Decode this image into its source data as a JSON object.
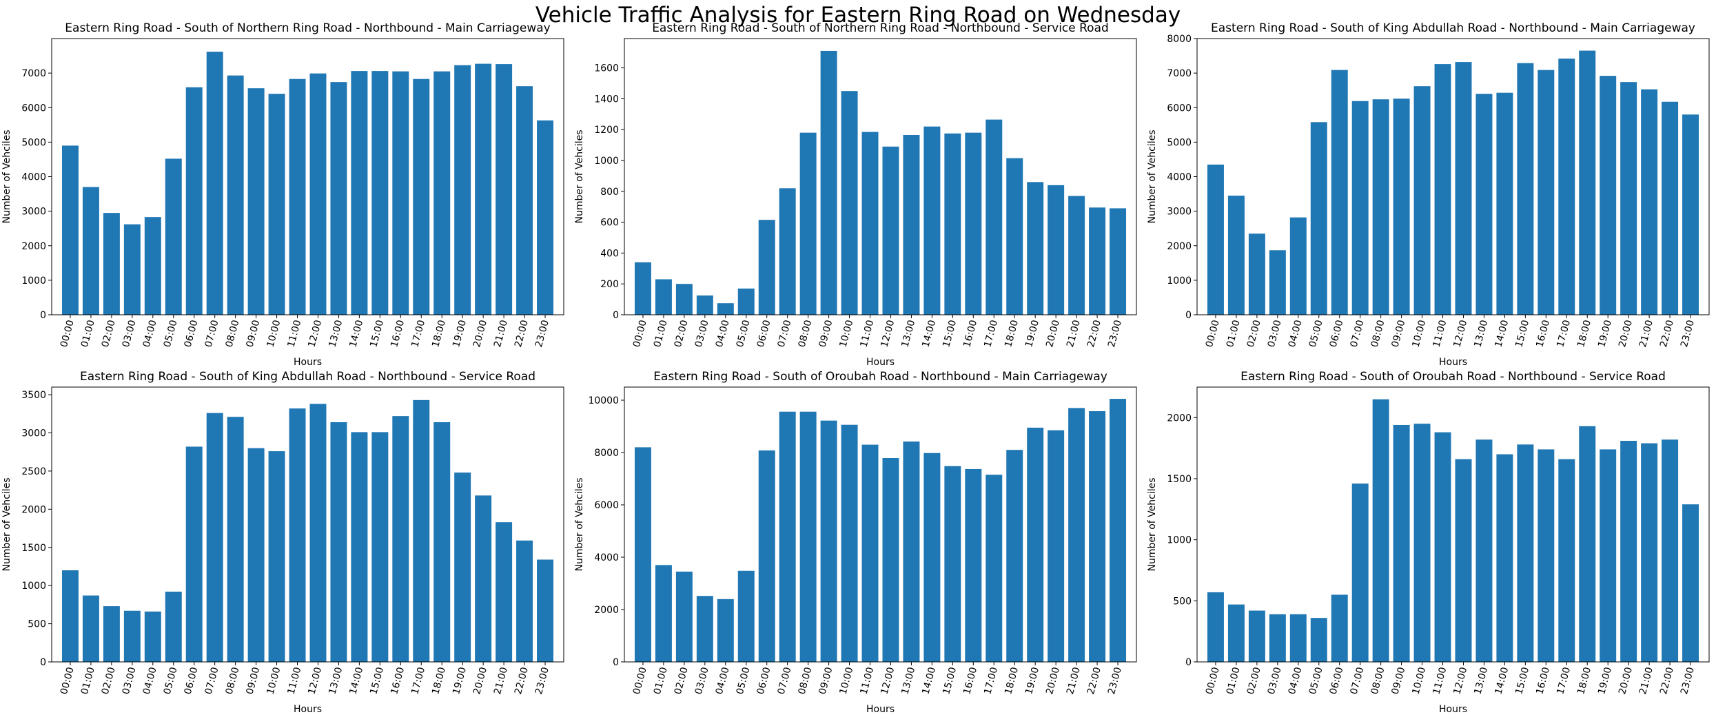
{
  "figure": {
    "suptitle": "Vehicle Traffic Analysis for Eastern Ring Road on Wednesday"
  },
  "chart_data": [
    {
      "type": "bar",
      "title": "Eastern Ring Road - South of Northern Ring Road - Northbound - Main Carriageway",
      "xlabel": "Hours",
      "ylabel": "Number of Vehciles",
      "categories": [
        "00:00",
        "01:00",
        "02:00",
        "03:00",
        "04:00",
        "05:00",
        "06:00",
        "07:00",
        "08:00",
        "09:00",
        "10:00",
        "11:00",
        "12:00",
        "13:00",
        "14:00",
        "15:00",
        "16:00",
        "17:00",
        "18:00",
        "19:00",
        "20:00",
        "21:00",
        "22:00",
        "23:00"
      ],
      "values": [
        4900,
        3700,
        2950,
        2620,
        2830,
        4520,
        6590,
        7620,
        6930,
        6560,
        6400,
        6830,
        6990,
        6740,
        7060,
        7060,
        7050,
        6830,
        7050,
        7230,
        7270,
        7260,
        6620,
        5630
      ],
      "ylim": [
        0,
        8000
      ],
      "yticks": [
        0,
        1000,
        2000,
        3000,
        4000,
        5000,
        6000,
        7000
      ],
      "color": "#1f77b4"
    },
    {
      "type": "bar",
      "title": "Eastern Ring Road - South of Northern Ring Road - Northbound - Service Road",
      "xlabel": "Hours",
      "ylabel": "Number of Vehciles",
      "categories": [
        "00:00",
        "01:00",
        "02:00",
        "03:00",
        "04:00",
        "05:00",
        "06:00",
        "07:00",
        "08:00",
        "09:00",
        "10:00",
        "11:00",
        "12:00",
        "13:00",
        "14:00",
        "15:00",
        "16:00",
        "17:00",
        "18:00",
        "19:00",
        "20:00",
        "21:00",
        "22:00",
        "23:00"
      ],
      "values": [
        340,
        230,
        200,
        125,
        75,
        170,
        615,
        820,
        1180,
        1710,
        1450,
        1185,
        1090,
        1165,
        1220,
        1175,
        1180,
        1265,
        1015,
        860,
        840,
        770,
        695,
        690
      ],
      "ylim": [
        0,
        1790
      ],
      "yticks": [
        0,
        200,
        400,
        600,
        800,
        1000,
        1200,
        1400,
        1600
      ],
      "color": "#1f77b4"
    },
    {
      "type": "bar",
      "title": "Eastern Ring Road - South of King Abdullah Road - Northbound - Main Carriageway",
      "xlabel": "Hours",
      "ylabel": "Number of Vehciles",
      "categories": [
        "00:00",
        "01:00",
        "02:00",
        "03:00",
        "04:00",
        "05:00",
        "06:00",
        "07:00",
        "08:00",
        "09:00",
        "10:00",
        "11:00",
        "12:00",
        "13:00",
        "14:00",
        "15:00",
        "16:00",
        "17:00",
        "18:00",
        "19:00",
        "20:00",
        "21:00",
        "22:00",
        "23:00"
      ],
      "values": [
        4350,
        3450,
        2350,
        1870,
        2820,
        5580,
        7090,
        6190,
        6240,
        6260,
        6620,
        7260,
        7320,
        6400,
        6430,
        7290,
        7090,
        7420,
        7650,
        6920,
        6740,
        6530,
        6170,
        5800
      ],
      "ylim": [
        0,
        8000
      ],
      "yticks": [
        0,
        1000,
        2000,
        3000,
        4000,
        5000,
        6000,
        7000,
        8000
      ],
      "color": "#1f77b4"
    },
    {
      "type": "bar",
      "title": "Eastern Ring Road - South of King Abdullah Road - Northbound - Service Road",
      "xlabel": "Hours",
      "ylabel": "Number of Vehciles",
      "categories": [
        "00:00",
        "01:00",
        "02:00",
        "03:00",
        "04:00",
        "05:00",
        "06:00",
        "07:00",
        "08:00",
        "09:00",
        "10:00",
        "11:00",
        "12:00",
        "13:00",
        "14:00",
        "15:00",
        "16:00",
        "17:00",
        "18:00",
        "19:00",
        "20:00",
        "21:00",
        "22:00",
        "23:00"
      ],
      "values": [
        1200,
        870,
        730,
        670,
        660,
        920,
        2820,
        3260,
        3210,
        2800,
        2760,
        3320,
        3380,
        3140,
        3010,
        3010,
        3220,
        3430,
        3140,
        2480,
        2180,
        1830,
        1590,
        1340
      ],
      "ylim": [
        0,
        3600
      ],
      "yticks": [
        0,
        500,
        1000,
        1500,
        2000,
        2500,
        3000,
        3500
      ],
      "color": "#1f77b4"
    },
    {
      "type": "bar",
      "title": "Eastern Ring Road - South of Oroubah Road - Northbound - Main Carriageway",
      "xlabel": "Hours",
      "ylabel": "Number of Vehciles",
      "categories": [
        "00:00",
        "01:00",
        "02:00",
        "03:00",
        "04:00",
        "05:00",
        "06:00",
        "07:00",
        "08:00",
        "09:00",
        "10:00",
        "11:00",
        "12:00",
        "13:00",
        "14:00",
        "15:00",
        "16:00",
        "17:00",
        "18:00",
        "19:00",
        "20:00",
        "21:00",
        "22:00",
        "23:00"
      ],
      "values": [
        8200,
        3700,
        3450,
        2520,
        2400,
        3480,
        8080,
        9560,
        9560,
        9220,
        9060,
        8300,
        7790,
        8420,
        7980,
        7480,
        7370,
        7150,
        8100,
        8950,
        8850,
        9700,
        9580,
        10050
      ],
      "ylim": [
        0,
        10500
      ],
      "yticks": [
        0,
        2000,
        4000,
        6000,
        8000,
        10000
      ],
      "color": "#1f77b4"
    },
    {
      "type": "bar",
      "title": "Eastern Ring Road - South of Oroubah Road - Northbound - Service Road",
      "xlabel": "Hours",
      "ylabel": "Number of Vehciles",
      "categories": [
        "00:00",
        "01:00",
        "02:00",
        "03:00",
        "04:00",
        "05:00",
        "06:00",
        "07:00",
        "08:00",
        "09:00",
        "10:00",
        "11:00",
        "12:00",
        "13:00",
        "14:00",
        "15:00",
        "16:00",
        "17:00",
        "18:00",
        "19:00",
        "20:00",
        "21:00",
        "22:00",
        "23:00"
      ],
      "values": [
        570,
        470,
        420,
        390,
        390,
        360,
        550,
        1460,
        2150,
        1940,
        1950,
        1880,
        1660,
        1820,
        1700,
        1780,
        1740,
        1660,
        1930,
        1740,
        1810,
        1790,
        1820,
        1290
      ],
      "ylim": [
        0,
        2250
      ],
      "yticks": [
        0,
        500,
        1000,
        1500,
        2000
      ],
      "color": "#1f77b4"
    }
  ]
}
